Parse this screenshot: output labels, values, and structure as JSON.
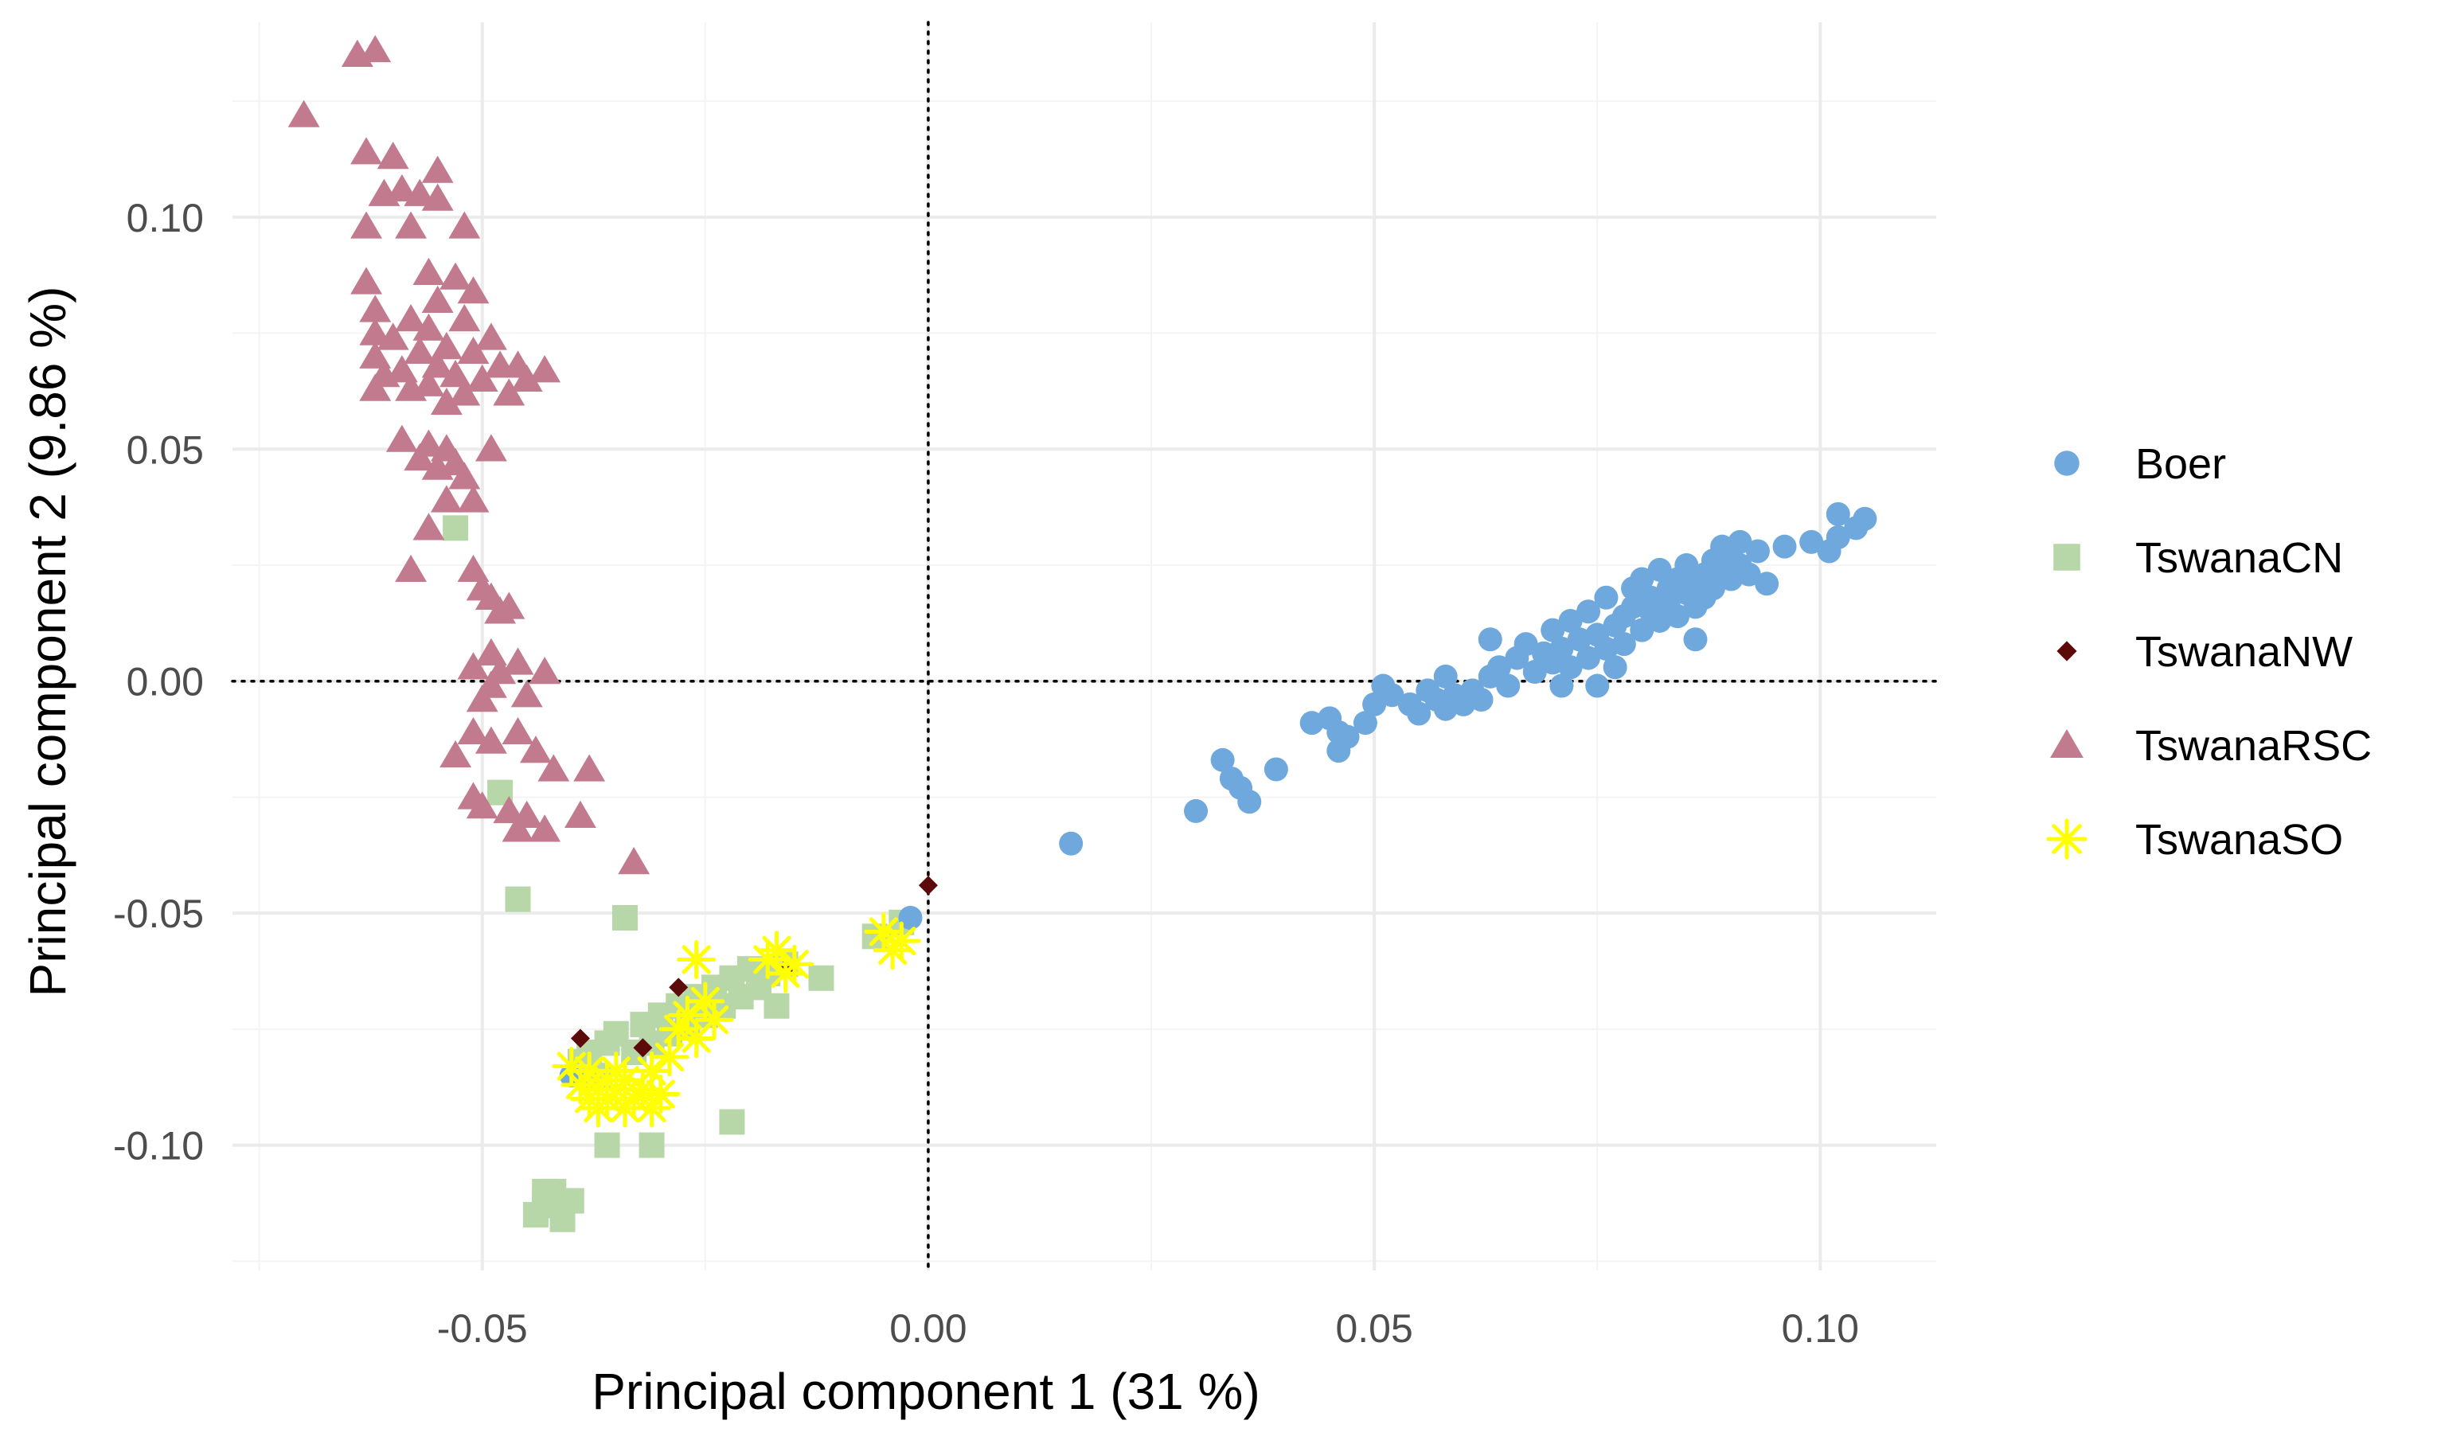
{
  "chart_data": {
    "type": "scatter",
    "title": "",
    "xlabel": "Principal component 1 (31 %)",
    "ylabel": "Principal component 2 (9.86 %)",
    "xlim": [
      -0.078,
      0.113
    ],
    "ylim": [
      -0.127,
      0.142
    ],
    "x_ticks": [
      -0.05,
      0.0,
      0.05,
      0.1
    ],
    "x_tick_labels": [
      "-0.05",
      "0.00",
      "0.05",
      "0.10"
    ],
    "y_ticks": [
      -0.1,
      -0.05,
      0.0,
      0.05,
      0.1
    ],
    "y_tick_labels": [
      "-0.10",
      "-0.05",
      "0.00",
      "0.05",
      "0.10"
    ],
    "grid": true,
    "reference_lines": {
      "x": 0,
      "y": 0,
      "style": "dotted"
    },
    "legend_position": "right",
    "series": [
      {
        "name": "Boer",
        "color": "#6fa8dc",
        "marker": "circle",
        "points": [
          [
            -0.04,
            -0.085
          ],
          [
            -0.002,
            -0.051
          ],
          [
            0.016,
            -0.035
          ],
          [
            0.03,
            -0.028
          ],
          [
            0.033,
            -0.017
          ],
          [
            0.034,
            -0.021
          ],
          [
            0.035,
            -0.023
          ],
          [
            0.036,
            -0.026
          ],
          [
            0.039,
            -0.019
          ],
          [
            0.043,
            -0.009
          ],
          [
            0.045,
            -0.008
          ],
          [
            0.046,
            -0.011
          ],
          [
            0.046,
            -0.015
          ],
          [
            0.047,
            -0.012
          ],
          [
            0.049,
            -0.009
          ],
          [
            0.05,
            -0.005
          ],
          [
            0.051,
            -0.001
          ],
          [
            0.052,
            -0.003
          ],
          [
            0.054,
            -0.005
          ],
          [
            0.055,
            -0.007
          ],
          [
            0.056,
            -0.002
          ],
          [
            0.057,
            -0.004
          ],
          [
            0.058,
            -0.006
          ],
          [
            0.058,
            0.001
          ],
          [
            0.059,
            -0.003
          ],
          [
            0.06,
            -0.005
          ],
          [
            0.061,
            -0.002
          ],
          [
            0.062,
            -0.004
          ],
          [
            0.063,
            0.001
          ],
          [
            0.063,
            0.009
          ],
          [
            0.064,
            0.003
          ],
          [
            0.065,
            -0.001
          ],
          [
            0.066,
            0.005
          ],
          [
            0.067,
            0.008
          ],
          [
            0.068,
            0.002
          ],
          [
            0.069,
            0.006
          ],
          [
            0.07,
            0.004
          ],
          [
            0.07,
            0.011
          ],
          [
            0.071,
            0.007
          ],
          [
            0.071,
            -0.001
          ],
          [
            0.072,
            0.003
          ],
          [
            0.072,
            0.013
          ],
          [
            0.073,
            0.009
          ],
          [
            0.074,
            0.005
          ],
          [
            0.074,
            0.015
          ],
          [
            0.075,
            0.01
          ],
          [
            0.075,
            -0.001
          ],
          [
            0.076,
            0.007
          ],
          [
            0.076,
            0.018
          ],
          [
            0.077,
            0.012
          ],
          [
            0.077,
            0.003
          ],
          [
            0.078,
            0.014
          ],
          [
            0.078,
            0.008
          ],
          [
            0.079,
            0.016
          ],
          [
            0.079,
            0.02
          ],
          [
            0.08,
            0.011
          ],
          [
            0.08,
            0.022
          ],
          [
            0.081,
            0.015
          ],
          [
            0.081,
            0.018
          ],
          [
            0.082,
            0.013
          ],
          [
            0.082,
            0.024
          ],
          [
            0.083,
            0.017
          ],
          [
            0.083,
            0.02
          ],
          [
            0.084,
            0.014
          ],
          [
            0.084,
            0.022
          ],
          [
            0.085,
            0.019
          ],
          [
            0.085,
            0.025
          ],
          [
            0.086,
            0.016
          ],
          [
            0.086,
            0.021
          ],
          [
            0.087,
            0.023
          ],
          [
            0.087,
            0.018
          ],
          [
            0.088,
            0.026
          ],
          [
            0.088,
            0.02
          ],
          [
            0.089,
            0.024
          ],
          [
            0.089,
            0.029
          ],
          [
            0.09,
            0.022
          ],
          [
            0.09,
            0.027
          ],
          [
            0.091,
            0.025
          ],
          [
            0.091,
            0.03
          ],
          [
            0.092,
            0.023
          ],
          [
            0.093,
            0.028
          ],
          [
            0.094,
            0.021
          ],
          [
            0.096,
            0.029
          ],
          [
            0.099,
            0.03
          ],
          [
            0.101,
            0.028
          ],
          [
            0.102,
            0.031
          ],
          [
            0.102,
            0.036
          ],
          [
            0.104,
            0.033
          ],
          [
            0.105,
            0.035
          ],
          [
            0.086,
            0.009
          ]
        ]
      },
      {
        "name": "TswanaCN",
        "color": "#b7d7a8",
        "marker": "square",
        "points": [
          [
            -0.053,
            0.033
          ],
          [
            -0.048,
            -0.024
          ],
          [
            -0.046,
            -0.047
          ],
          [
            -0.044,
            -0.115
          ],
          [
            -0.043,
            -0.112
          ],
          [
            -0.043,
            -0.11
          ],
          [
            -0.042,
            -0.11
          ],
          [
            -0.042,
            -0.113
          ],
          [
            -0.041,
            -0.116
          ],
          [
            -0.04,
            -0.112
          ],
          [
            -0.039,
            -0.082
          ],
          [
            -0.038,
            -0.08
          ],
          [
            -0.037,
            -0.085
          ],
          [
            -0.036,
            -0.078
          ],
          [
            -0.036,
            -0.1
          ],
          [
            -0.035,
            -0.076
          ],
          [
            -0.034,
            -0.051
          ],
          [
            -0.033,
            -0.08
          ],
          [
            -0.032,
            -0.074
          ],
          [
            -0.031,
            -0.078
          ],
          [
            -0.031,
            -0.1
          ],
          [
            -0.03,
            -0.072
          ],
          [
            -0.029,
            -0.076
          ],
          [
            -0.028,
            -0.07
          ],
          [
            -0.027,
            -0.074
          ],
          [
            -0.026,
            -0.068
          ],
          [
            -0.025,
            -0.072
          ],
          [
            -0.024,
            -0.066
          ],
          [
            -0.023,
            -0.07
          ],
          [
            -0.022,
            -0.064
          ],
          [
            -0.022,
            -0.095
          ],
          [
            -0.021,
            -0.068
          ],
          [
            -0.02,
            -0.062
          ],
          [
            -0.019,
            -0.066
          ],
          [
            -0.018,
            -0.063
          ],
          [
            -0.017,
            -0.07
          ],
          [
            -0.016,
            -0.061
          ],
          [
            -0.012,
            -0.064
          ],
          [
            -0.006,
            -0.055
          ],
          [
            -0.003,
            -0.052
          ]
        ]
      },
      {
        "name": "TswanaNW",
        "color": "#5c0a0a",
        "marker": "diamond",
        "points": [
          [
            -0.039,
            -0.077
          ],
          [
            -0.032,
            -0.079
          ],
          [
            -0.028,
            -0.066
          ],
          [
            -0.016,
            -0.062
          ],
          [
            0.0,
            -0.044
          ]
        ]
      },
      {
        "name": "TswanaRSC",
        "color": "#c27b8e",
        "marker": "triangle",
        "points": [
          [
            -0.07,
            0.122
          ],
          [
            -0.064,
            0.135
          ],
          [
            -0.062,
            0.136
          ],
          [
            -0.063,
            0.114
          ],
          [
            -0.06,
            0.113
          ],
          [
            -0.061,
            0.105
          ],
          [
            -0.059,
            0.106
          ],
          [
            -0.057,
            0.105
          ],
          [
            -0.055,
            0.11
          ],
          [
            -0.055,
            0.104
          ],
          [
            -0.058,
            0.098
          ],
          [
            -0.063,
            0.098
          ],
          [
            -0.052,
            0.098
          ],
          [
            -0.063,
            0.086
          ],
          [
            -0.062,
            0.08
          ],
          [
            -0.062,
            0.075
          ],
          [
            -0.062,
            0.07
          ],
          [
            -0.061,
            0.066
          ],
          [
            -0.062,
            0.063
          ],
          [
            -0.06,
            0.074
          ],
          [
            -0.059,
            0.067
          ],
          [
            -0.058,
            0.078
          ],
          [
            -0.058,
            0.063
          ],
          [
            -0.057,
            0.071
          ],
          [
            -0.056,
            0.088
          ],
          [
            -0.056,
            0.076
          ],
          [
            -0.056,
            0.064
          ],
          [
            -0.055,
            0.068
          ],
          [
            -0.055,
            0.082
          ],
          [
            -0.054,
            0.072
          ],
          [
            -0.054,
            0.06
          ],
          [
            -0.053,
            0.087
          ],
          [
            -0.053,
            0.066
          ],
          [
            -0.052,
            0.078
          ],
          [
            -0.052,
            0.062
          ],
          [
            -0.051,
            0.084
          ],
          [
            -0.051,
            0.071
          ],
          [
            -0.05,
            0.065
          ],
          [
            -0.049,
            0.074
          ],
          [
            -0.048,
            0.068
          ],
          [
            -0.047,
            0.062
          ],
          [
            -0.046,
            0.068
          ],
          [
            -0.045,
            0.065
          ],
          [
            -0.043,
            0.067
          ],
          [
            -0.059,
            0.052
          ],
          [
            -0.057,
            0.048
          ],
          [
            -0.056,
            0.051
          ],
          [
            -0.055,
            0.046
          ],
          [
            -0.054,
            0.05
          ],
          [
            -0.053,
            0.047
          ],
          [
            -0.052,
            0.044
          ],
          [
            -0.051,
            0.039
          ],
          [
            -0.049,
            0.05
          ],
          [
            -0.054,
            0.039
          ],
          [
            -0.056,
            0.033
          ],
          [
            -0.058,
            0.024
          ],
          [
            -0.051,
            0.024
          ],
          [
            -0.05,
            0.02
          ],
          [
            -0.049,
            0.018
          ],
          [
            -0.048,
            0.015
          ],
          [
            -0.047,
            0.016
          ],
          [
            -0.049,
            0.006
          ],
          [
            -0.051,
            0.003
          ],
          [
            -0.05,
            -0.004
          ],
          [
            -0.049,
            -0.001
          ],
          [
            -0.048,
            0.002
          ],
          [
            -0.046,
            0.004
          ],
          [
            -0.045,
            -0.003
          ],
          [
            -0.043,
            0.002
          ],
          [
            -0.051,
            -0.011
          ],
          [
            -0.049,
            -0.013
          ],
          [
            -0.046,
            -0.011
          ],
          [
            -0.044,
            -0.015
          ],
          [
            -0.053,
            -0.016
          ],
          [
            -0.051,
            -0.025
          ],
          [
            -0.05,
            -0.027
          ],
          [
            -0.047,
            -0.028
          ],
          [
            -0.045,
            -0.029
          ],
          [
            -0.043,
            -0.032
          ],
          [
            -0.042,
            -0.019
          ],
          [
            -0.039,
            -0.029
          ],
          [
            -0.038,
            -0.019
          ],
          [
            -0.046,
            -0.032
          ],
          [
            -0.033,
            -0.039
          ]
        ]
      },
      {
        "name": "TswanaSO",
        "color": "#ffff00",
        "marker": "asterisk",
        "points": [
          [
            -0.04,
            -0.083
          ],
          [
            -0.039,
            -0.087
          ],
          [
            -0.038,
            -0.09
          ],
          [
            -0.038,
            -0.084
          ],
          [
            -0.037,
            -0.088
          ],
          [
            -0.037,
            -0.092
          ],
          [
            -0.036,
            -0.086
          ],
          [
            -0.036,
            -0.09
          ],
          [
            -0.035,
            -0.084
          ],
          [
            -0.035,
            -0.088
          ],
          [
            -0.034,
            -0.092
          ],
          [
            -0.034,
            -0.086
          ],
          [
            -0.033,
            -0.09
          ],
          [
            -0.032,
            -0.088
          ],
          [
            -0.031,
            -0.092
          ],
          [
            -0.03,
            -0.089
          ],
          [
            -0.031,
            -0.084
          ],
          [
            -0.029,
            -0.081
          ],
          [
            -0.028,
            -0.075
          ],
          [
            -0.027,
            -0.072
          ],
          [
            -0.026,
            -0.077
          ],
          [
            -0.026,
            -0.06
          ],
          [
            -0.025,
            -0.069
          ],
          [
            -0.024,
            -0.073
          ],
          [
            -0.018,
            -0.06
          ],
          [
            -0.017,
            -0.058
          ],
          [
            -0.016,
            -0.063
          ],
          [
            -0.015,
            -0.061
          ],
          [
            -0.005,
            -0.054
          ],
          [
            -0.004,
            -0.058
          ],
          [
            -0.003,
            -0.056
          ]
        ]
      }
    ]
  }
}
